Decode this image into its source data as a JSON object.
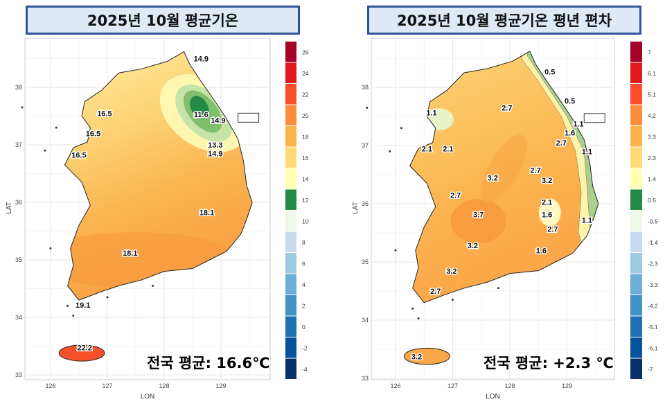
{
  "panels": [
    {
      "title": "2025년 10월 평균기온",
      "national_avg": "전국 평균: 16.6℃",
      "xlabel": "LON",
      "ylabel": "LAT",
      "lon_ticks": [
        "126",
        "127",
        "128",
        "129"
      ],
      "lat_ticks": [
        "38",
        "37",
        "36",
        "35",
        "34",
        "33"
      ],
      "colorbar": {
        "labels": [
          "26",
          "24",
          "22",
          "20",
          "18",
          "16",
          "14",
          "12",
          "10",
          "8",
          "6",
          "4",
          "2",
          "0",
          "-2",
          "-4"
        ],
        "colors": [
          "#a50026",
          "#e31a1c",
          "#fc4e2a",
          "#fd8d3c",
          "#feb24c",
          "#fed976",
          "#ffffb2",
          "#238b45",
          "#edf8e9",
          "#c6dbef",
          "#9ecae1",
          "#6baed6",
          "#4292c6",
          "#2171b5",
          "#08519c",
          "#08306b"
        ]
      },
      "contour_labels": [
        "14.9",
        "16.5",
        "16.5",
        "11.6",
        "14.9",
        "13.3",
        "14.9",
        "16.5",
        "18.1",
        "18.1",
        "22.2",
        "19.1"
      ]
    },
    {
      "title": "2025년 10월 평균기온  평년 편차",
      "national_avg": "전국 평균: +2.3 ℃",
      "xlabel": "LON",
      "ylabel": "LAT",
      "lon_ticks": [
        "126",
        "127",
        "128",
        "129"
      ],
      "lat_ticks": [
        "38",
        "37",
        "36",
        "35",
        "34",
        "33"
      ],
      "colorbar": {
        "labels": [
          "7",
          "6.1",
          "5.1",
          "4.2",
          "3.3",
          "2.3",
          "1.4",
          "0.5",
          "-0.5",
          "-1.4",
          "-2.3",
          "-3.3",
          "-4.2",
          "-5.1",
          "-6.1",
          "-7"
        ],
        "colors": [
          "#a50026",
          "#e31a1c",
          "#fc4e2a",
          "#fd8d3c",
          "#feb24c",
          "#fed976",
          "#ffffb2",
          "#238b45",
          "#edf8e9",
          "#c6dbef",
          "#9ecae1",
          "#6baed6",
          "#4292c6",
          "#2171b5",
          "#08519c",
          "#08306b"
        ]
      },
      "contour_labels": [
        "0.5",
        "0.5",
        "1.1",
        "1.6",
        "2.7",
        "2.7",
        "1.1",
        "2.1",
        "2.1",
        "2.7",
        "3.2",
        "3.2",
        "2.7",
        "2.1",
        "1.6",
        "2.7",
        "3.7",
        "3.2",
        "1.6",
        "3.2",
        "2.7",
        "3.2",
        "1.1",
        "1.1"
      ]
    }
  ]
}
